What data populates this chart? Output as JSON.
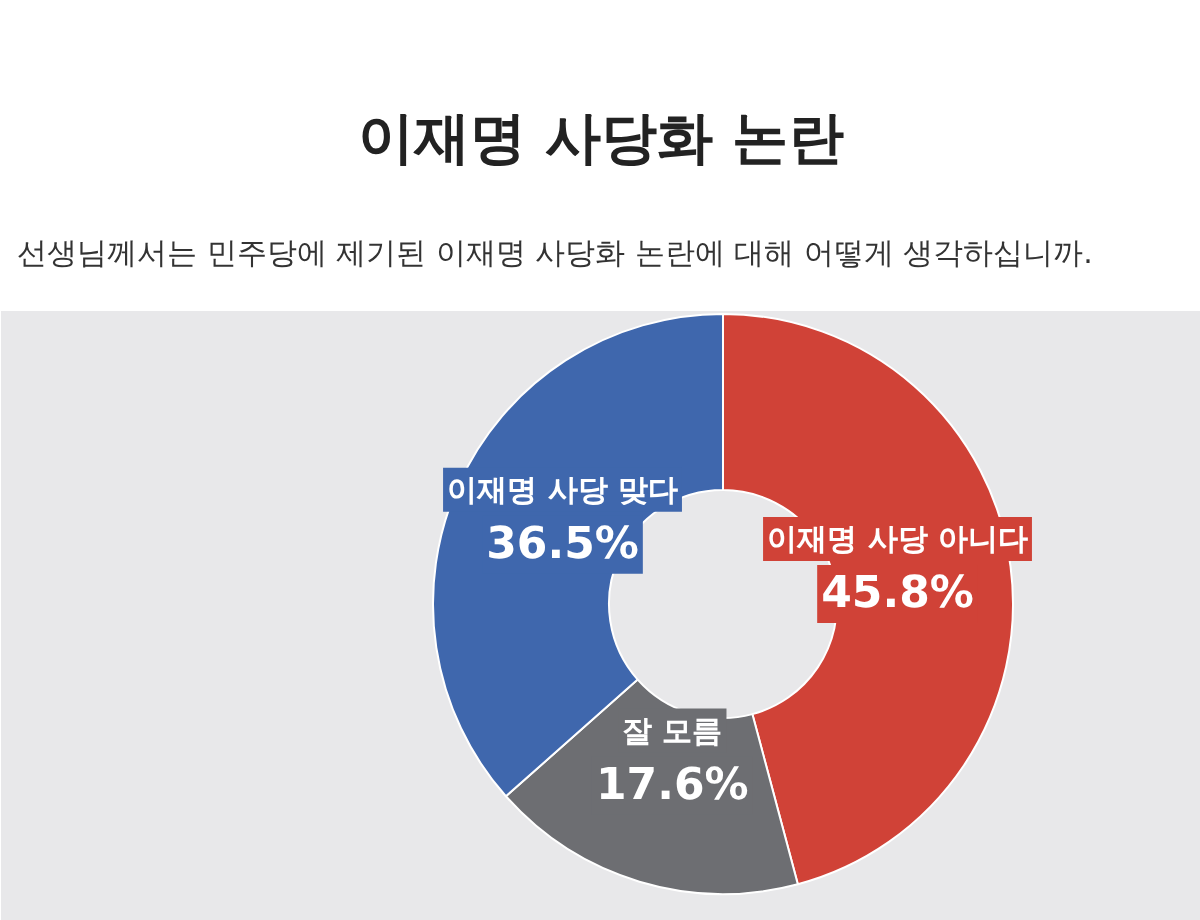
{
  "chart_data": {
    "type": "donut",
    "title": "이재명 사당화 논란",
    "subtitle": "선생님께서는 민주당에 제기된 이재명 사당화 논란에 대해 어떻게 생각하십니까.",
    "categories": [
      "이재명 사당 아니다",
      "잘 모름",
      "이재명 사당 맞다"
    ],
    "values": [
      45.8,
      17.6,
      36.5
    ],
    "colors": [
      "#d04237",
      "#6d6e72",
      "#3f67ad"
    ],
    "value_labels": [
      "45.8%",
      "17.6%",
      "36.5%"
    ]
  }
}
